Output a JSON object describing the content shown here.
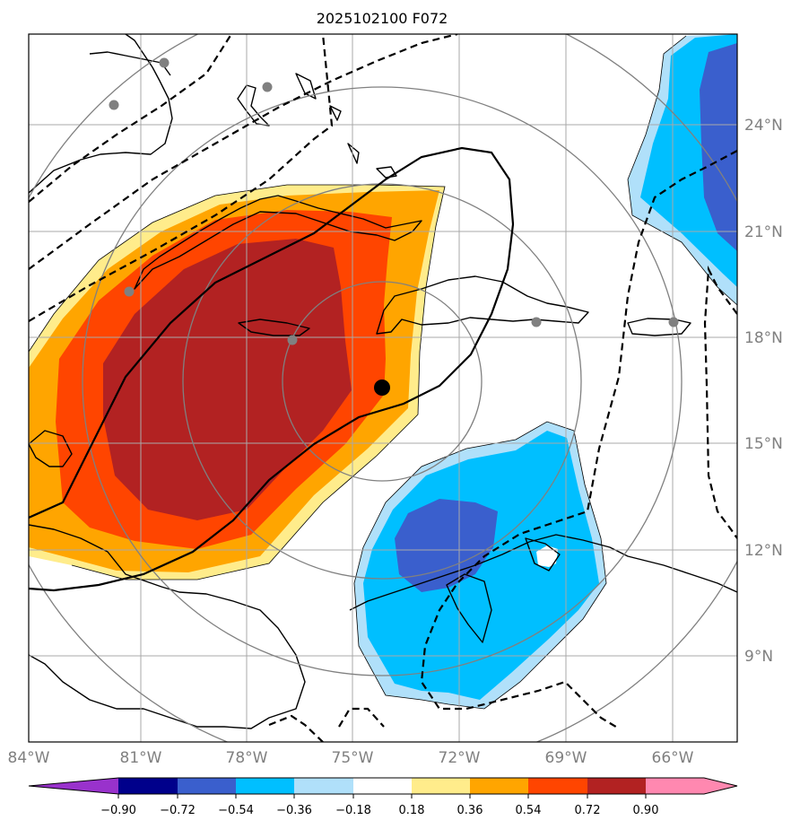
{
  "title": "2025102100 F072",
  "lon_labels": [
    "84°W",
    "81°W",
    "78°W",
    "75°W",
    "72°W",
    "69°W",
    "66°W"
  ],
  "lat_labels": [
    "24°N",
    "21°N",
    "18°N",
    "15°N",
    "12°N",
    "9°N"
  ],
  "colorbar": {
    "ticks": [
      "−0.90",
      "−0.72",
      "−0.54",
      "−0.36",
      "−0.18",
      "0.18",
      "0.36",
      "0.54",
      "0.72",
      "0.90"
    ],
    "colors": [
      "#9932CC",
      "#00008B",
      "#3A5FCD",
      "#00BFFF",
      "#B0E0FA",
      "#FFFFFF",
      "#FFEC8B",
      "#FFA500",
      "#FF4500",
      "#B22222",
      "#FF88B0"
    ]
  },
  "colors": {
    "land_outline": "#000000",
    "grid": "#A9A9A9",
    "range_rings": "#808080",
    "storm_center": "#000000",
    "stations": "#808080"
  },
  "icons": {
    "storm_center": "filled-circle",
    "stations": "filled-circle"
  }
}
